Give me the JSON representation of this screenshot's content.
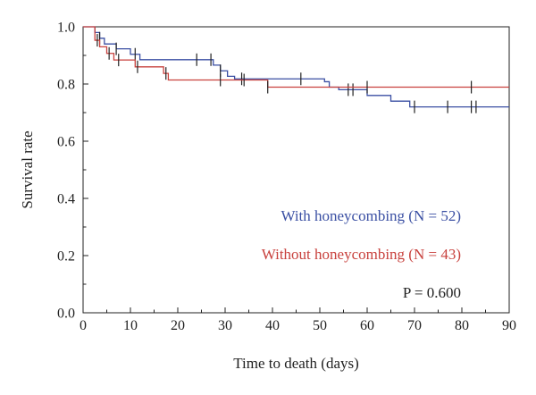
{
  "chart_data": {
    "type": "line",
    "xlabel": "Time to death (days)",
    "ylabel": "Survival rate",
    "xlim": [
      0,
      90
    ],
    "ylim": [
      0.0,
      1.0
    ],
    "xticks": [
      "0",
      "10",
      "20",
      "30",
      "40",
      "50",
      "60",
      "70",
      "80",
      "90"
    ],
    "yticks": [
      "0.0",
      "0.2",
      "0.4",
      "0.6",
      "0.8",
      "1.0"
    ],
    "grid": false,
    "annotation": "P = 0.600",
    "series": [
      {
        "name": "With honeycombing (N = 52)",
        "color": "#3a4fa3",
        "steps_x": [
          0,
          2.5,
          3.5,
          4.5,
          7,
          10,
          12,
          27.5,
          29,
          30.5,
          32,
          51,
          52,
          54,
          60,
          65,
          69,
          90
        ],
        "steps_y": [
          1.0,
          0.98,
          0.96,
          0.94,
          0.923,
          0.904,
          0.885,
          0.866,
          0.846,
          0.827,
          0.818,
          0.808,
          0.789,
          0.78,
          0.76,
          0.74,
          0.72,
          0.72
        ],
        "censors_x": [
          3.5,
          7,
          11,
          24,
          27,
          29,
          33.5,
          46,
          56,
          57,
          70,
          77,
          82,
          83
        ]
      },
      {
        "name": "Without honeycombing (N = 43)",
        "color": "#c8413d",
        "steps_x": [
          0,
          2.5,
          3.5,
          5,
          6.5,
          11,
          17,
          18,
          39,
          90
        ],
        "steps_y": [
          1.0,
          0.953,
          0.93,
          0.907,
          0.884,
          0.86,
          0.837,
          0.814,
          0.789,
          0.789
        ],
        "censors_x": [
          3,
          5.5,
          7.5,
          11.5,
          17.5,
          29,
          34,
          39,
          60,
          82
        ]
      }
    ]
  }
}
